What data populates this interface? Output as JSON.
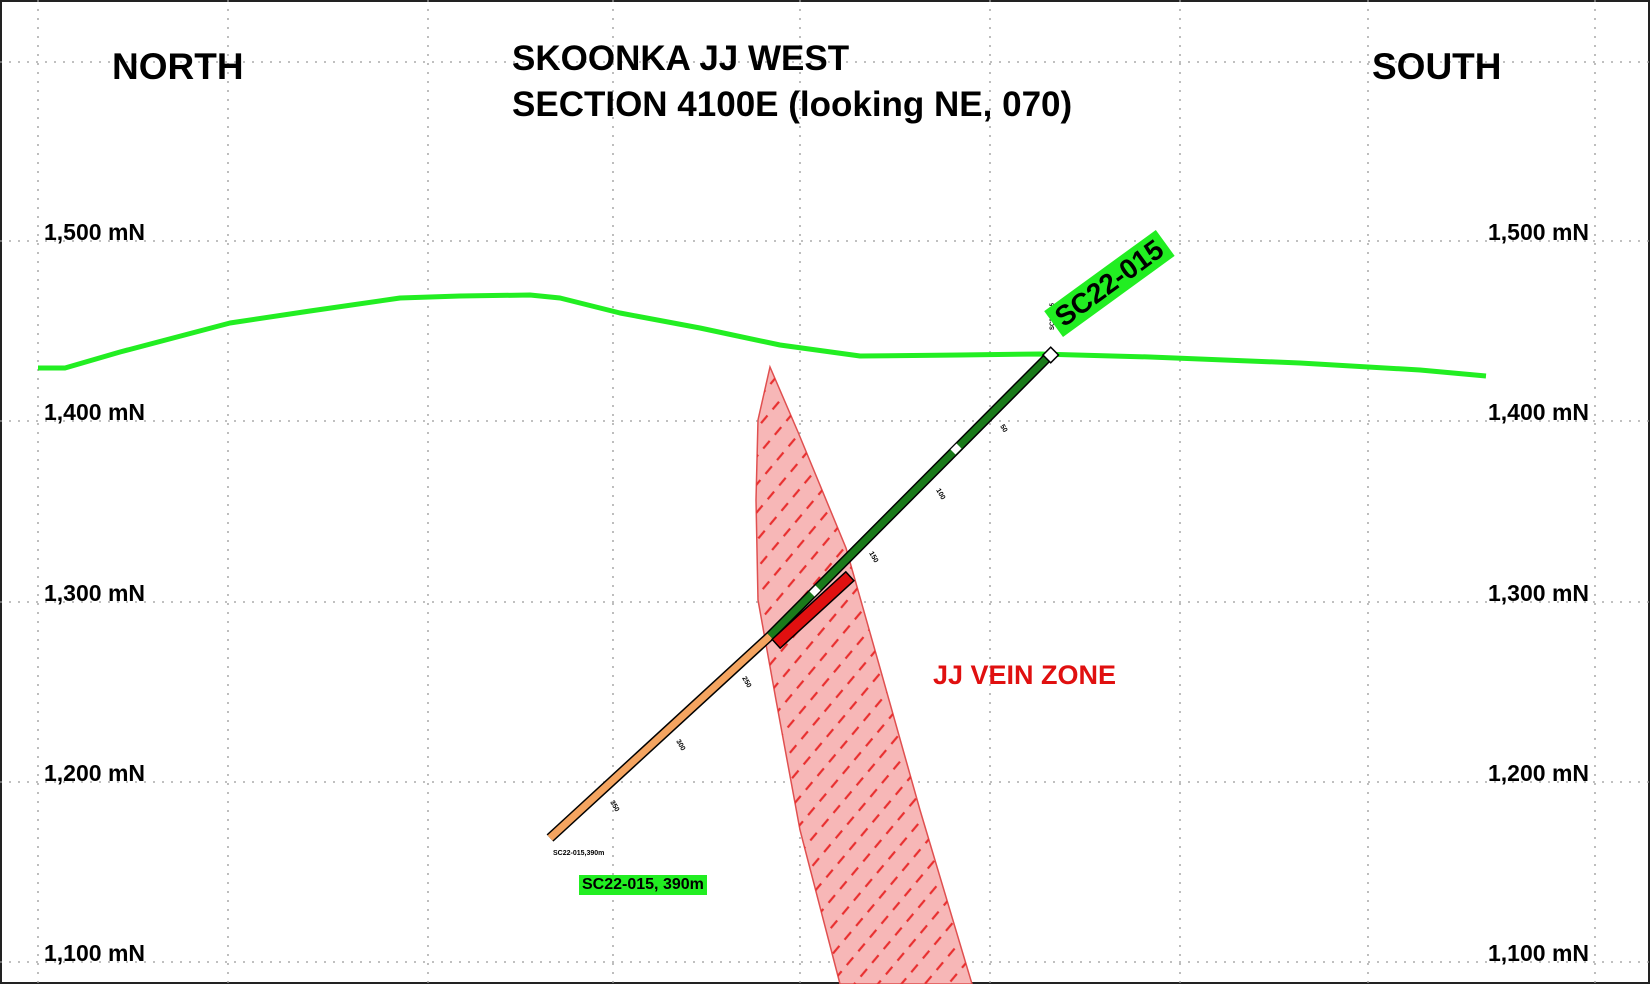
{
  "title": {
    "line1": "SKOONKA JJ WEST",
    "line2": "SECTION 4100E (looking NE, 070)"
  },
  "orientation": {
    "left": "NORTH",
    "right": "SOUTH"
  },
  "elevations": [
    "1,500 mN",
    "1,400 mN",
    "1,300 mN",
    "1,200 mN",
    "1,100 mN"
  ],
  "drillhole": {
    "id": "SC22-015",
    "collar_label": "SC22-015",
    "end_label": "SC22-015, 390m",
    "end_small_label": "SC22-015,390m",
    "depth_ticks": [
      "50",
      "100",
      "150",
      "250",
      "300",
      "350"
    ]
  },
  "vein_zone": {
    "label": "JJ VEIN ZONE"
  },
  "colors": {
    "topography": "#22ee22",
    "hole_upper": "#1a7a1a",
    "hole_lower": "#f4a460",
    "intercept": "#e01010",
    "vein_fill": "#f7b7b7",
    "vein_hatch": "#e83030",
    "tag_bg": "#22ee22"
  }
}
